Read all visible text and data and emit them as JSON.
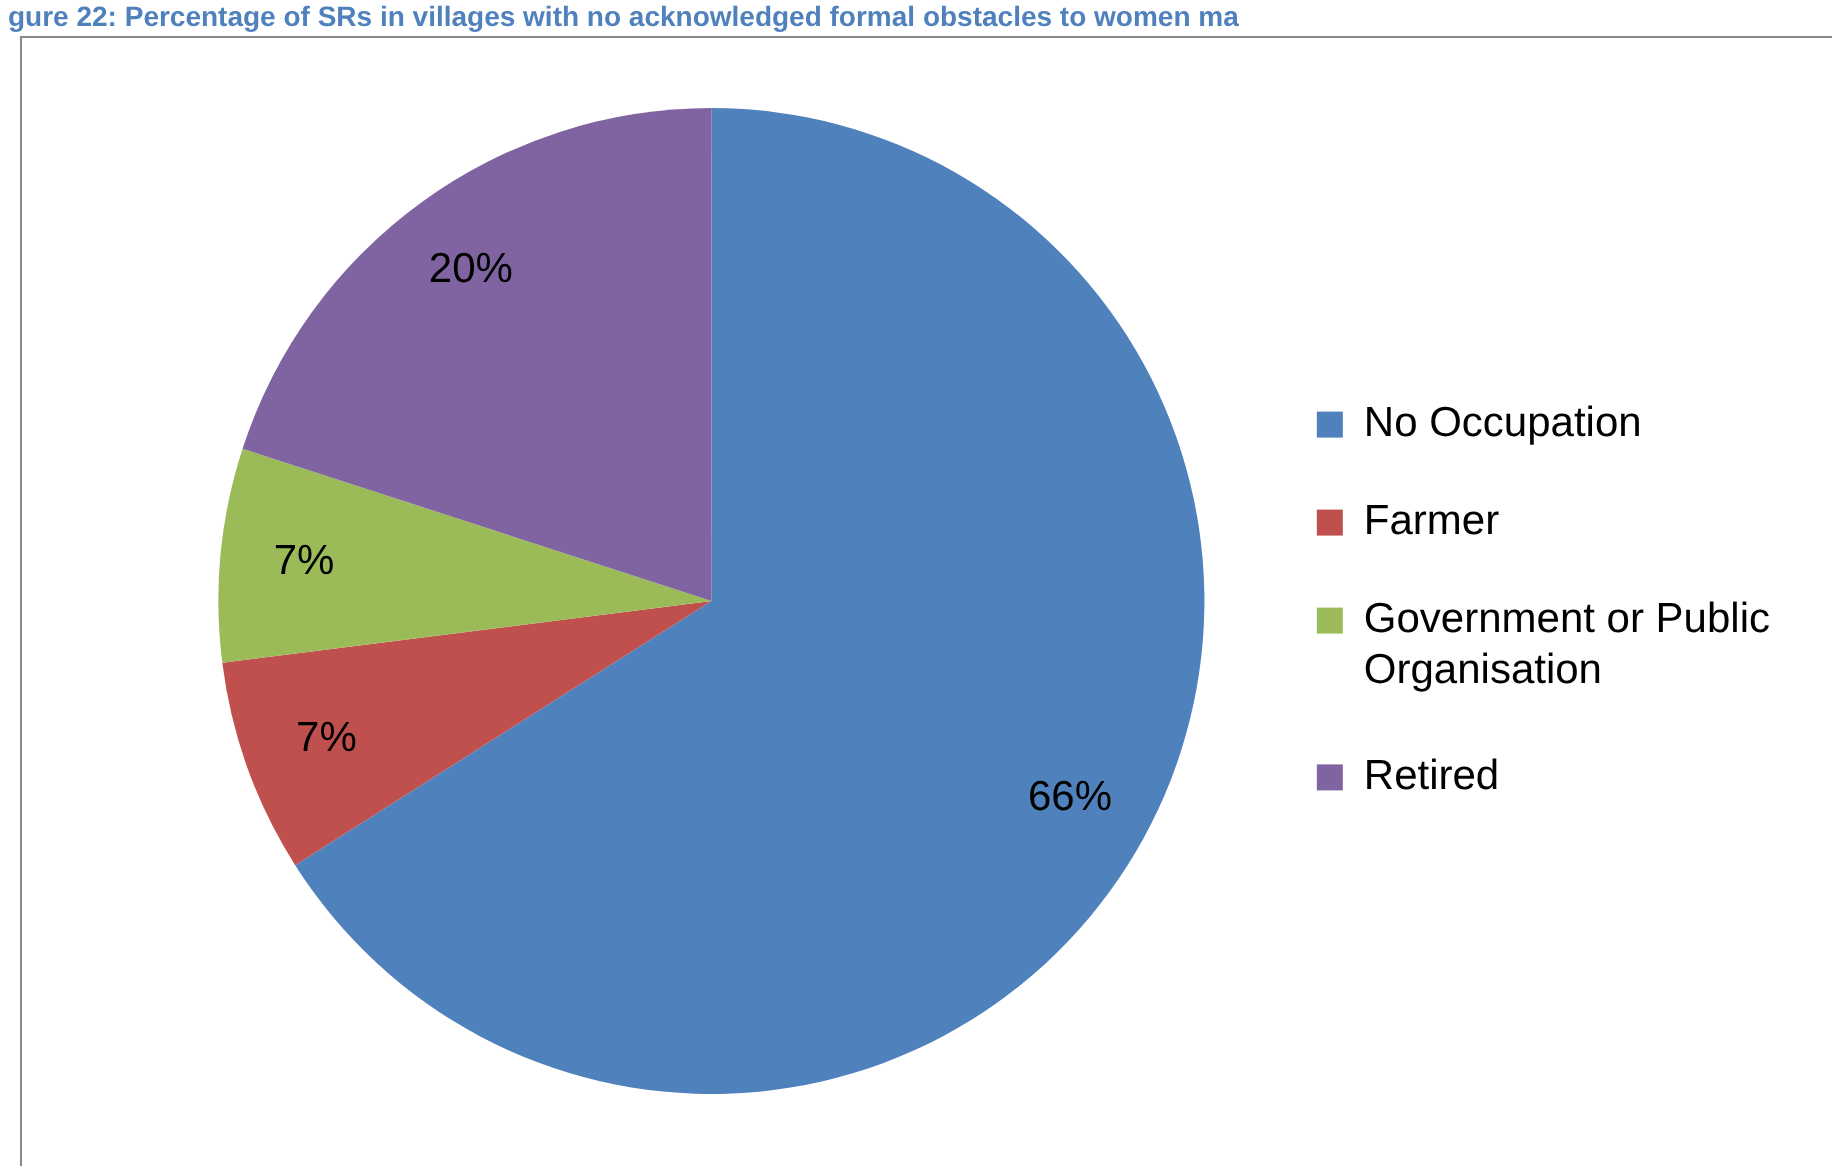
{
  "chart_data": {
    "type": "pie",
    "title": "gure 22: Percentage of SRs in villages with no acknowledged formal obstacles to women ma",
    "categories": [
      "No Occupation",
      "Farmer",
      "Government or Public Organisation",
      "Retired"
    ],
    "values": [
      66,
      7,
      7,
      20
    ],
    "colors": [
      "#4f81bd",
      "#c0504d",
      "#9bbb59",
      "#8064a2"
    ],
    "value_labels": [
      "66%",
      "7%",
      "7%",
      "20%"
    ],
    "legend": "right"
  }
}
